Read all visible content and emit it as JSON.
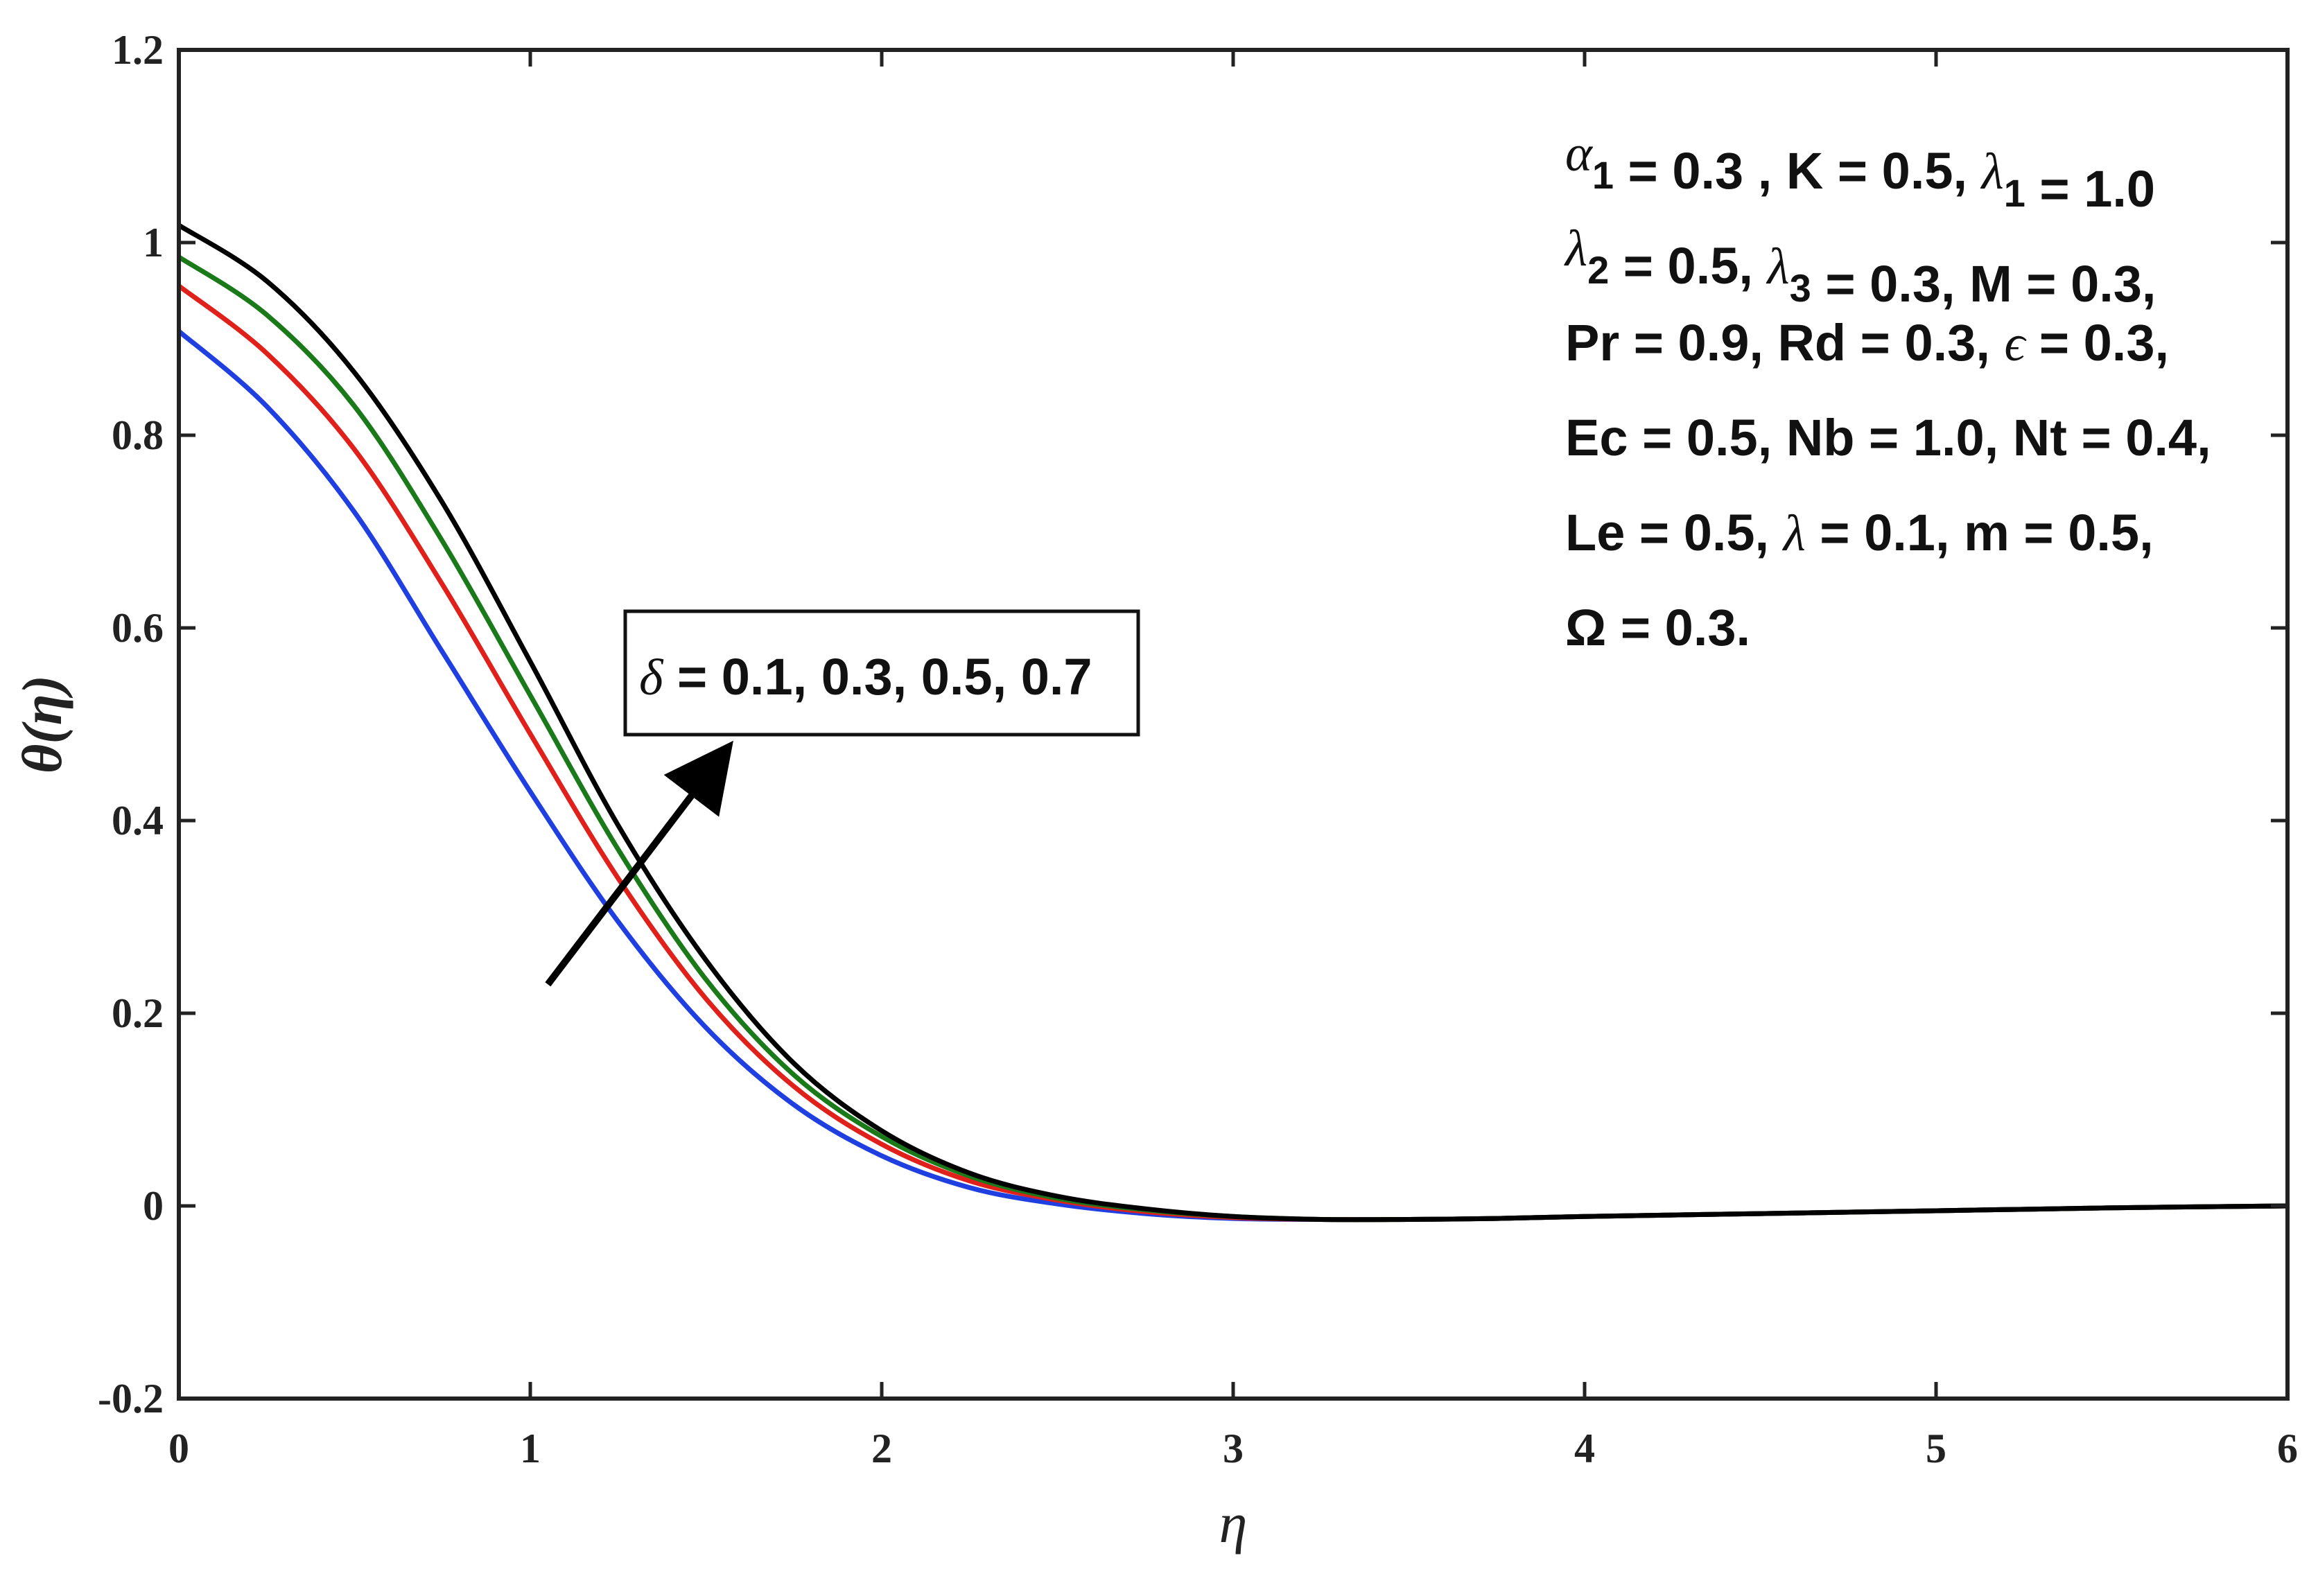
{
  "chart_data": {
    "type": "line",
    "xlabel": "η",
    "ylabel": "θ(η)",
    "xlim": [
      0,
      6
    ],
    "ylim": [
      -0.2,
      1.2
    ],
    "x_ticks": [
      0,
      1,
      2,
      3,
      4,
      5,
      6
    ],
    "x_tick_labels": [
      "0",
      "1",
      "2",
      "3",
      "4",
      "5",
      "6"
    ],
    "y_ticks": [
      -0.2,
      0,
      0.2,
      0.4,
      0.6,
      0.8,
      1,
      1.2
    ],
    "y_tick_labels": [
      "-0.2",
      "0",
      "0.2",
      "0.4",
      "0.6",
      "0.8",
      "1",
      "1.2"
    ],
    "grid": false,
    "x": [
      0,
      0.25,
      0.5,
      0.75,
      1.0,
      1.25,
      1.5,
      1.75,
      2.0,
      2.25,
      2.5,
      2.75,
      3.0,
      3.25,
      3.5,
      3.75,
      4.0,
      4.5,
      5.0,
      5.5,
      6.0
    ],
    "series": [
      {
        "color": "#1f3fe0",
        "values": [
          0.908,
          0.83,
          0.72,
          0.575,
          0.43,
          0.295,
          0.185,
          0.105,
          0.052,
          0.019,
          0.002,
          -0.008,
          -0.013,
          -0.014,
          -0.014,
          -0.013,
          -0.011,
          -0.008,
          -0.005,
          -0.002,
          0.0
        ]
      },
      {
        "color": "#e0201a",
        "values": [
          0.955,
          0.885,
          0.785,
          0.645,
          0.49,
          0.34,
          0.215,
          0.124,
          0.064,
          0.026,
          0.006,
          -0.006,
          -0.012,
          -0.014,
          -0.014,
          -0.013,
          -0.011,
          -0.008,
          -0.005,
          -0.002,
          0.0
        ]
      },
      {
        "color": "#1a7a1a",
        "values": [
          0.985,
          0.925,
          0.83,
          0.69,
          0.53,
          0.37,
          0.235,
          0.136,
          0.072,
          0.031,
          0.008,
          -0.004,
          -0.011,
          -0.014,
          -0.014,
          -0.013,
          -0.011,
          -0.008,
          -0.005,
          -0.002,
          0.0
        ]
      },
      {
        "color": "#000000",
        "values": [
          1.018,
          0.96,
          0.865,
          0.73,
          0.565,
          0.395,
          0.255,
          0.148,
          0.078,
          0.034,
          0.01,
          -0.003,
          -0.011,
          -0.014,
          -0.014,
          -0.013,
          -0.011,
          -0.008,
          -0.005,
          -0.002,
          0.0
        ]
      }
    ],
    "legend_box": {
      "symbol": "δ",
      "text": " = 0.1, 0.3, 0.5, 0.7"
    },
    "arrow": {
      "from": [
        1.05,
        0.23
      ],
      "to": [
        1.53,
        0.46
      ],
      "color": "#000000"
    },
    "parameters": [
      {
        "parts": [
          {
            "g": "α"
          },
          {
            "sub": "1"
          },
          {
            "t": " = 0.3 , K = 0.5, "
          },
          {
            "g": "λ"
          },
          {
            "sub": "1"
          },
          {
            "t": " = 1.0"
          }
        ]
      },
      {
        "parts": [
          {
            "g": "λ"
          },
          {
            "sub": "2"
          },
          {
            "t": " = 0.5, "
          },
          {
            "g": "λ"
          },
          {
            "sub": "3"
          },
          {
            "t": " = 0.3, M = 0.3,"
          }
        ]
      },
      {
        "parts": [
          {
            "t": "Pr = 0.9, Rd = 0.3, "
          },
          {
            "g": "ϵ"
          },
          {
            "t": " = 0.3,"
          }
        ]
      },
      {
        "parts": [
          {
            "t": "Ec = 0.5, Nb = 1.0, Nt = 0.4,"
          }
        ]
      },
      {
        "parts": [
          {
            "t": "Le = 0.5, "
          },
          {
            "g": "λ"
          },
          {
            "t": " = 0.1, m = 0.5,"
          }
        ]
      },
      {
        "parts": [
          {
            "t": "Ω = 0.3."
          }
        ]
      }
    ]
  }
}
